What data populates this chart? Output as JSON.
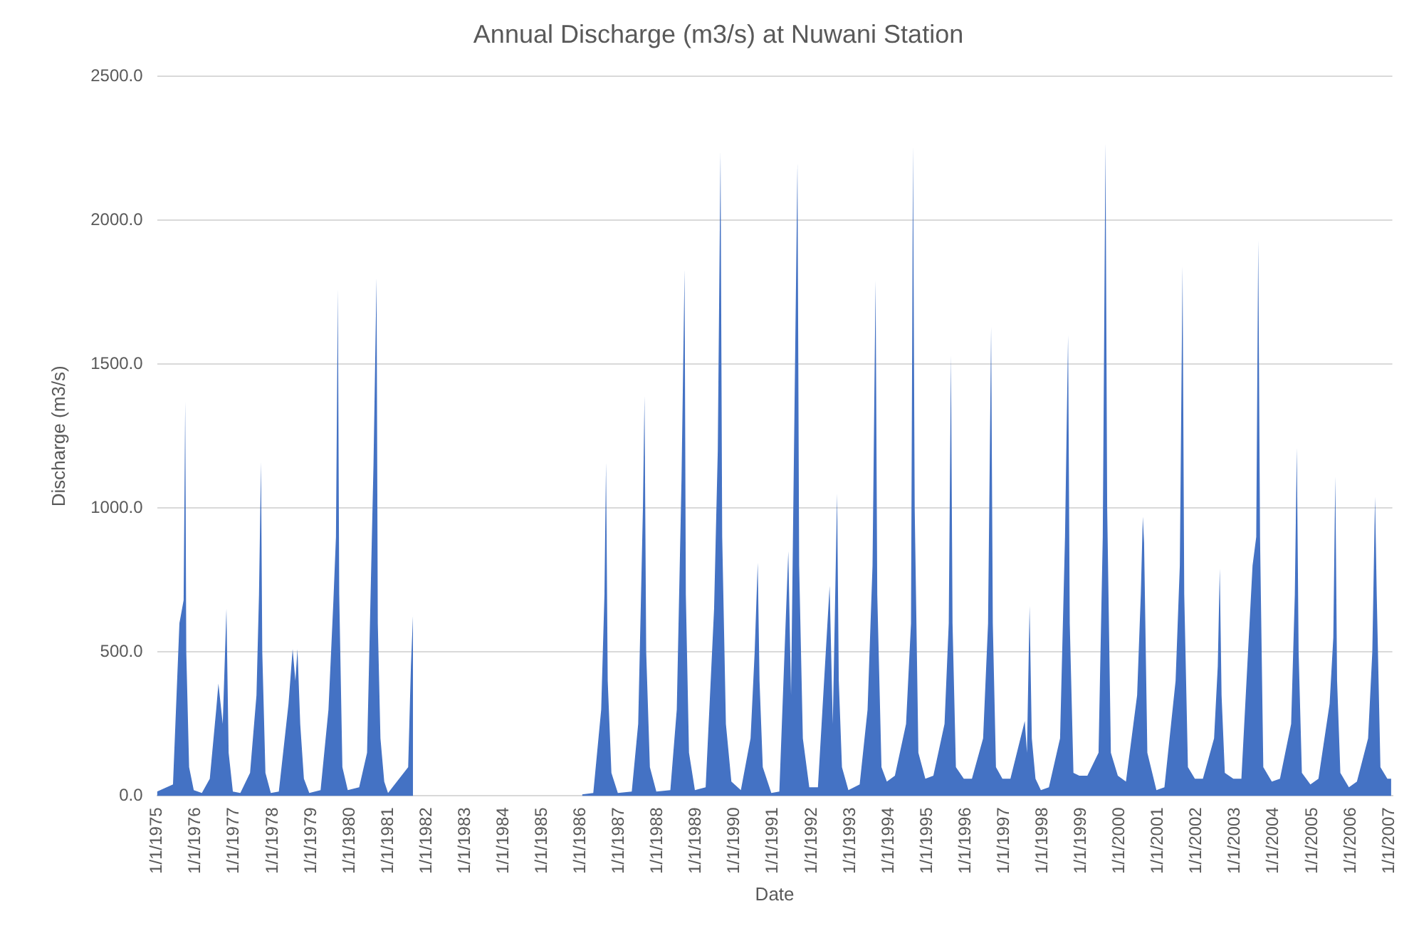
{
  "chart_data": {
    "type": "area",
    "title": "Annual Discharge (m3/s) at Nuwani Station",
    "xlabel": "Date",
    "ylabel": "Discharge (m3/s)",
    "color": "#4472c4",
    "grid": "y",
    "legend": false,
    "xlim": [
      "1975-01-01",
      "2007-01-31"
    ],
    "xticks": [
      {
        "value": "1975-01-01",
        "label": "1/1/1975"
      },
      {
        "value": "1976-01-01",
        "label": "1/1/1976"
      },
      {
        "value": "1977-01-01",
        "label": "1/1/1977"
      },
      {
        "value": "1978-01-01",
        "label": "1/1/1978"
      },
      {
        "value": "1979-01-01",
        "label": "1/1/1979"
      },
      {
        "value": "1980-01-01",
        "label": "1/1/1980"
      },
      {
        "value": "1981-01-01",
        "label": "1/1/1981"
      },
      {
        "value": "1982-01-01",
        "label": "1/1/1982"
      },
      {
        "value": "1983-01-01",
        "label": "1/1/1983"
      },
      {
        "value": "1984-01-01",
        "label": "1/1/1984"
      },
      {
        "value": "1985-01-01",
        "label": "1/1/1985"
      },
      {
        "value": "1986-01-01",
        "label": "1/1/1986"
      },
      {
        "value": "1987-01-01",
        "label": "1/1/1987"
      },
      {
        "value": "1988-01-01",
        "label": "1/1/1988"
      },
      {
        "value": "1989-01-01",
        "label": "1/1/1989"
      },
      {
        "value": "1990-01-01",
        "label": "1/1/1990"
      },
      {
        "value": "1991-01-01",
        "label": "1/1/1991"
      },
      {
        "value": "1992-01-01",
        "label": "1/1/1992"
      },
      {
        "value": "1993-01-01",
        "label": "1/1/1993"
      },
      {
        "value": "1994-01-01",
        "label": "1/1/1994"
      },
      {
        "value": "1995-01-01",
        "label": "1/1/1995"
      },
      {
        "value": "1996-01-01",
        "label": "1/1/1996"
      },
      {
        "value": "1997-01-01",
        "label": "1/1/1997"
      },
      {
        "value": "1998-01-01",
        "label": "1/1/1998"
      },
      {
        "value": "1999-01-01",
        "label": "1/1/1999"
      },
      {
        "value": "2000-01-01",
        "label": "1/1/2000"
      },
      {
        "value": "2001-01-01",
        "label": "1/1/2001"
      },
      {
        "value": "2002-01-01",
        "label": "1/1/2002"
      },
      {
        "value": "2003-01-01",
        "label": "1/1/2003"
      },
      {
        "value": "2004-01-01",
        "label": "1/1/2004"
      },
      {
        "value": "2005-01-01",
        "label": "1/1/2005"
      },
      {
        "value": "2006-01-01",
        "label": "1/1/2006"
      },
      {
        "value": "2007-01-01",
        "label": "1/1/2007"
      }
    ],
    "ylim": [
      0,
      2500
    ],
    "yticks": [
      {
        "value": 0,
        "label": "0.0"
      },
      {
        "value": 500,
        "label": "500.0"
      },
      {
        "value": 1000,
        "label": "1000.0"
      },
      {
        "value": 1500,
        "label": "1500.0"
      },
      {
        "value": 2000,
        "label": "2000.0"
      },
      {
        "value": 2500,
        "label": "2500.0"
      }
    ],
    "x": [
      "1975-01-01",
      "1975-06-01",
      "1975-08-01",
      "1975-09-10",
      "1975-09-25",
      "1975-10-05",
      "1975-11-01",
      "1975-12-15",
      "1976-03-01",
      "1976-05-15",
      "1976-07-15",
      "1976-08-05",
      "1976-09-15",
      "1976-10-20",
      "1976-11-10",
      "1976-12-20",
      "1977-03-01",
      "1977-06-01",
      "1977-08-01",
      "1977-08-25",
      "1977-09-13",
      "1977-09-25",
      "1977-10-25",
      "1977-12-15",
      "1978-03-01",
      "1978-06-01",
      "1978-07-10",
      "1978-08-05",
      "1978-08-25",
      "1978-09-20",
      "1978-10-25",
      "1978-12-15",
      "1979-04-01",
      "1979-06-15",
      "1979-08-01",
      "1979-08-25",
      "1979-09-12",
      "1979-09-25",
      "1979-10-25",
      "1979-12-15",
      "1980-04-01",
      "1980-06-15",
      "1980-08-15",
      "1980-09-13",
      "1980-09-25",
      "1980-10-20",
      "1980-11-25",
      "1980-12-31",
      "1981-07-10",
      "1981-08-05",
      "1981-08-25",
      "1981-09-05",
      "1986-01-15",
      "1986-05-01",
      "1986-07-15",
      "1986-08-15",
      "1986-08-30",
      "1986-09-15",
      "1986-10-20",
      "1986-12-20",
      "1987-05-01",
      "1987-07-01",
      "1987-08-15",
      "1987-08-30",
      "1987-09-15",
      "1987-10-20",
      "1987-12-20",
      "1988-05-01",
      "1988-07-01",
      "1988-08-15",
      "1988-09-13",
      "1988-09-25",
      "1988-10-25",
      "1988-12-20",
      "1989-04-01",
      "1989-06-20",
      "1989-07-25",
      "1989-08-20",
      "1989-09-05",
      "1989-10-10",
      "1989-12-01",
      "1990-03-01",
      "1990-06-01",
      "1990-07-10",
      "1990-08-08",
      "1990-08-25",
      "1990-09-25",
      "1990-12-15",
      "1991-03-01",
      "1991-05-25",
      "1991-06-20",
      "1991-08-20",
      "1991-09-05",
      "1991-10-10",
      "1991-12-10",
      "1992-03-01",
      "1992-06-20",
      "1992-07-20",
      "1992-08-30",
      "1992-09-15",
      "1992-10-15",
      "1992-12-15",
      "1993-04-01",
      "1993-06-15",
      "1993-08-01",
      "1993-08-30",
      "1993-09-15",
      "1993-10-25",
      "1993-12-15",
      "1994-03-01",
      "1994-06-15",
      "1994-08-01",
      "1994-08-20",
      "1994-09-05",
      "1994-10-10",
      "1994-12-15",
      "1995-03-01",
      "1995-06-15",
      "1995-07-25",
      "1995-08-15",
      "1995-08-30",
      "1995-10-01",
      "1995-12-15",
      "1996-03-01",
      "1996-06-15",
      "1996-08-01",
      "1996-08-30",
      "1996-09-15",
      "1996-10-15",
      "1996-12-15",
      "1997-03-01",
      "1997-07-15",
      "1997-08-05",
      "1997-08-30",
      "1997-09-20",
      "1997-10-25",
      "1997-12-15",
      "1998-03-01",
      "1998-06-15",
      "1998-08-01",
      "1998-08-30",
      "1998-09-15",
      "1998-10-20",
      "1998-12-15",
      "1999-03-01",
      "1999-06-15",
      "1999-07-25",
      "1999-08-20",
      "1999-09-05",
      "1999-10-10",
      "1999-12-15",
      "2000-03-01",
      "2000-06-15",
      "2000-07-20",
      "2000-08-08",
      "2000-08-20",
      "2000-09-20",
      "2000-12-15",
      "2001-03-01",
      "2001-06-15",
      "2001-07-25",
      "2001-08-20",
      "2001-09-05",
      "2001-10-10",
      "2001-12-15",
      "2002-03-01",
      "2002-06-15",
      "2002-07-20",
      "2002-08-08",
      "2002-08-25",
      "2002-09-25",
      "2002-12-15",
      "2003-03-01",
      "2003-06-15",
      "2003-07-20",
      "2003-08-08",
      "2003-08-25",
      "2003-09-25",
      "2003-12-15",
      "2004-03-01",
      "2004-06-15",
      "2004-07-20",
      "2004-08-08",
      "2004-08-25",
      "2004-09-25",
      "2004-12-15",
      "2005-03-01",
      "2005-06-15",
      "2005-07-20",
      "2005-08-08",
      "2005-08-25",
      "2005-09-25",
      "2005-12-15",
      "2006-03-01",
      "2006-06-15",
      "2006-07-25",
      "2006-08-20",
      "2006-09-05",
      "2006-10-10",
      "2006-12-15",
      "2007-01-20"
    ],
    "values": [
      15,
      40,
      600,
      680,
      1370,
      500,
      100,
      20,
      10,
      60,
      300,
      390,
      250,
      650,
      150,
      15,
      10,
      80,
      350,
      700,
      1160,
      500,
      80,
      10,
      15,
      320,
      510,
      400,
      510,
      250,
      60,
      10,
      20,
      300,
      680,
      900,
      1760,
      700,
      100,
      20,
      30,
      150,
      1150,
      1800,
      600,
      200,
      50,
      10,
      100,
      450,
      630,
      null,
      5,
      10,
      300,
      700,
      1160,
      400,
      80,
      10,
      15,
      250,
      1000,
      1390,
      500,
      100,
      15,
      20,
      300,
      1100,
      1830,
      700,
      150,
      20,
      30,
      650,
      1200,
      2240,
      900,
      250,
      50,
      20,
      200,
      500,
      810,
      400,
      100,
      10,
      15,
      850,
      350,
      2200,
      800,
      200,
      30,
      30,
      730,
      250,
      1050,
      400,
      100,
      20,
      40,
      300,
      800,
      1790,
      700,
      100,
      50,
      70,
      250,
      600,
      2260,
      1000,
      150,
      60,
      70,
      250,
      600,
      1530,
      600,
      100,
      60,
      60,
      200,
      600,
      1630,
      600,
      100,
      60,
      60,
      260,
      150,
      660,
      200,
      60,
      20,
      30,
      200,
      900,
      1600,
      600,
      80,
      70,
      70,
      150,
      900,
      2270,
      1000,
      150,
      70,
      50,
      350,
      700,
      970,
      880,
      150,
      20,
      30,
      400,
      800,
      1840,
      700,
      100,
      60,
      60,
      200,
      450,
      790,
      350,
      80,
      60,
      60,
      800,
      900,
      1930,
      900,
      100,
      50,
      60,
      250,
      700,
      1210,
      500,
      80,
      40,
      60,
      320,
      550,
      1110,
      400,
      80,
      30,
      50,
      200,
      500,
      1040,
      700,
      100,
      60,
      60
    ]
  }
}
